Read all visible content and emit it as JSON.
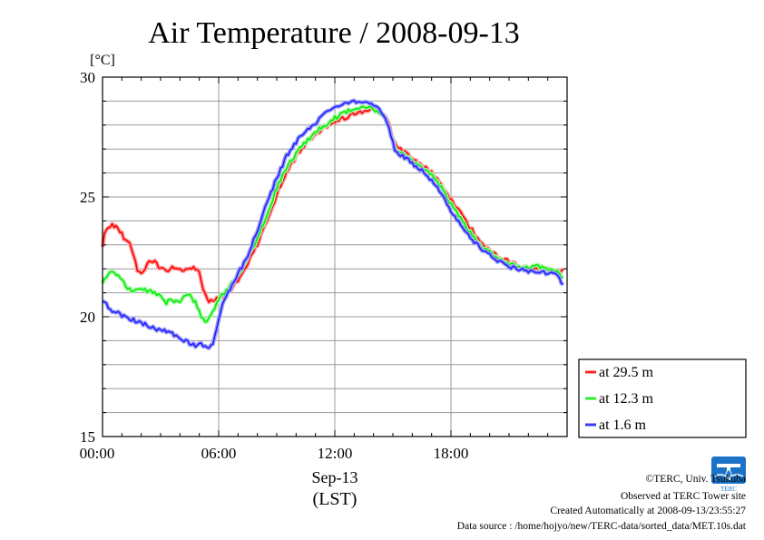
{
  "chart_data": {
    "type": "line",
    "title": "Air Temperature / 2008-09-13",
    "ylabel": "[°C]",
    "xlabel": "Sep-13",
    "xlabel2": "(LST)",
    "ylim": [
      15,
      30
    ],
    "xlim": [
      0,
      24
    ],
    "y_ticks": [
      {
        "v": 15,
        "label": "15"
      },
      {
        "v": 20,
        "label": "20"
      },
      {
        "v": 25,
        "label": "25"
      },
      {
        "v": 30,
        "label": "30"
      }
    ],
    "x_ticks": [
      {
        "v": 0,
        "label": "00:00"
      },
      {
        "v": 6,
        "label": "06:00"
      },
      {
        "v": 12,
        "label": "12:00"
      },
      {
        "v": 18,
        "label": "18:00"
      }
    ],
    "grid": true,
    "legend_position": "right-bottom",
    "series": [
      {
        "name": "at 29.5 m",
        "color": "#ff0000",
        "halo": "#ff9e9e",
        "points": [
          [
            0.0,
            23.0
          ],
          [
            0.15,
            23.7
          ],
          [
            0.5,
            23.8
          ],
          [
            0.8,
            23.7
          ],
          [
            1.1,
            23.3
          ],
          [
            1.4,
            23.1
          ],
          [
            1.6,
            22.6
          ],
          [
            1.8,
            21.9
          ],
          [
            2.1,
            21.8
          ],
          [
            2.4,
            22.4
          ],
          [
            2.7,
            22.3
          ],
          [
            3.0,
            22.0
          ],
          [
            3.3,
            21.9
          ],
          [
            3.6,
            22.1
          ],
          [
            3.9,
            22.0
          ],
          [
            4.2,
            21.9
          ],
          [
            4.5,
            22.1
          ],
          [
            4.8,
            22.0
          ],
          [
            5.0,
            21.8
          ],
          [
            5.2,
            21.2
          ],
          [
            5.5,
            20.6
          ],
          [
            5.8,
            20.7
          ],
          [
            6.1,
            20.8
          ],
          [
            6.5,
            21.0
          ],
          [
            7.0,
            21.5
          ],
          [
            7.5,
            22.2
          ],
          [
            8.0,
            23.0
          ],
          [
            8.5,
            24.0
          ],
          [
            9.0,
            25.1
          ],
          [
            9.5,
            26.0
          ],
          [
            10.0,
            26.7
          ],
          [
            10.5,
            27.2
          ],
          [
            11.0,
            27.6
          ],
          [
            11.5,
            27.9
          ],
          [
            12.0,
            28.1
          ],
          [
            12.5,
            28.3
          ],
          [
            13.0,
            28.5
          ],
          [
            13.5,
            28.6
          ],
          [
            14.0,
            28.7
          ],
          [
            14.5,
            28.5
          ],
          [
            14.8,
            28.0
          ],
          [
            15.1,
            27.2
          ],
          [
            15.5,
            26.9
          ],
          [
            16.0,
            26.6
          ],
          [
            16.5,
            26.3
          ],
          [
            17.0,
            26.0
          ],
          [
            17.5,
            25.5
          ],
          [
            18.0,
            24.9
          ],
          [
            18.5,
            24.3
          ],
          [
            19.0,
            23.7
          ],
          [
            19.5,
            23.2
          ],
          [
            20.0,
            22.8
          ],
          [
            20.5,
            22.5
          ],
          [
            21.0,
            22.3
          ],
          [
            21.5,
            22.1
          ],
          [
            22.0,
            22.0
          ],
          [
            22.5,
            22.0
          ],
          [
            23.0,
            22.0
          ],
          [
            23.3,
            21.9
          ],
          [
            23.6,
            21.8
          ],
          [
            23.85,
            22.0
          ]
        ]
      },
      {
        "name": "at 12.3 m",
        "color": "#00ee00",
        "halo": "#a6f7a6",
        "points": [
          [
            0.0,
            21.4
          ],
          [
            0.3,
            21.8
          ],
          [
            0.6,
            21.9
          ],
          [
            0.9,
            21.6
          ],
          [
            1.2,
            21.3
          ],
          [
            1.5,
            21.1
          ],
          [
            1.8,
            21.2
          ],
          [
            2.1,
            21.1
          ],
          [
            2.4,
            21.1
          ],
          [
            2.7,
            21.0
          ],
          [
            3.0,
            20.8
          ],
          [
            3.3,
            20.6
          ],
          [
            3.6,
            20.7
          ],
          [
            3.9,
            20.6
          ],
          [
            4.2,
            20.8
          ],
          [
            4.5,
            20.9
          ],
          [
            4.8,
            20.6
          ],
          [
            5.1,
            20.0
          ],
          [
            5.4,
            19.8
          ],
          [
            5.7,
            20.2
          ],
          [
            6.0,
            20.7
          ],
          [
            6.5,
            21.2
          ],
          [
            7.0,
            21.7
          ],
          [
            7.5,
            22.4
          ],
          [
            8.0,
            23.3
          ],
          [
            8.5,
            24.2
          ],
          [
            9.0,
            25.4
          ],
          [
            9.5,
            26.2
          ],
          [
            10.0,
            26.8
          ],
          [
            10.5,
            27.3
          ],
          [
            11.0,
            27.7
          ],
          [
            11.5,
            28.0
          ],
          [
            12.0,
            28.3
          ],
          [
            12.5,
            28.5
          ],
          [
            13.0,
            28.7
          ],
          [
            13.5,
            28.75
          ],
          [
            14.0,
            28.7
          ],
          [
            14.5,
            28.4
          ],
          [
            14.8,
            27.9
          ],
          [
            15.1,
            27.1
          ],
          [
            15.5,
            26.8
          ],
          [
            16.0,
            26.5
          ],
          [
            16.5,
            26.2
          ],
          [
            17.0,
            25.9
          ],
          [
            17.5,
            25.4
          ],
          [
            18.0,
            24.7
          ],
          [
            18.5,
            24.1
          ],
          [
            19.0,
            23.5
          ],
          [
            19.5,
            23.0
          ],
          [
            20.0,
            22.7
          ],
          [
            20.5,
            22.4
          ],
          [
            21.0,
            22.2
          ],
          [
            21.5,
            22.1
          ],
          [
            22.0,
            22.0
          ],
          [
            22.5,
            22.1
          ],
          [
            23.0,
            22.0
          ],
          [
            23.3,
            21.9
          ],
          [
            23.6,
            21.8
          ],
          [
            23.85,
            21.6
          ]
        ]
      },
      {
        "name": "at 1.6 m",
        "color": "#2020ff",
        "halo": "#9e9ef7",
        "points": [
          [
            0.0,
            20.7
          ],
          [
            0.3,
            20.4
          ],
          [
            0.6,
            20.2
          ],
          [
            0.9,
            20.1
          ],
          [
            1.2,
            20.0
          ],
          [
            1.5,
            19.9
          ],
          [
            1.8,
            19.8
          ],
          [
            2.1,
            19.7
          ],
          [
            2.4,
            19.6
          ],
          [
            2.7,
            19.5
          ],
          [
            3.0,
            19.4
          ],
          [
            3.3,
            19.4
          ],
          [
            3.6,
            19.3
          ],
          [
            3.9,
            19.2
          ],
          [
            4.2,
            19.0
          ],
          [
            4.5,
            18.9
          ],
          [
            4.8,
            18.8
          ],
          [
            5.1,
            18.9
          ],
          [
            5.4,
            18.7
          ],
          [
            5.7,
            18.9
          ],
          [
            6.0,
            19.8
          ],
          [
            6.3,
            20.8
          ],
          [
            6.6,
            21.2
          ],
          [
            7.0,
            21.8
          ],
          [
            7.5,
            22.5
          ],
          [
            8.0,
            23.6
          ],
          [
            8.5,
            24.8
          ],
          [
            9.0,
            25.8
          ],
          [
            9.5,
            26.7
          ],
          [
            10.0,
            27.3
          ],
          [
            10.5,
            27.8
          ],
          [
            11.0,
            28.1
          ],
          [
            11.5,
            28.5
          ],
          [
            12.0,
            28.7
          ],
          [
            12.5,
            28.9
          ],
          [
            13.0,
            29.0
          ],
          [
            13.5,
            28.95
          ],
          [
            14.0,
            28.8
          ],
          [
            14.5,
            28.5
          ],
          [
            14.8,
            27.9
          ],
          [
            15.1,
            27.0
          ],
          [
            15.5,
            26.7
          ],
          [
            16.0,
            26.4
          ],
          [
            16.5,
            26.1
          ],
          [
            17.0,
            25.7
          ],
          [
            17.5,
            25.1
          ],
          [
            18.0,
            24.4
          ],
          [
            18.5,
            23.8
          ],
          [
            19.0,
            23.3
          ],
          [
            19.5,
            22.9
          ],
          [
            20.0,
            22.6
          ],
          [
            20.5,
            22.3
          ],
          [
            21.0,
            22.1
          ],
          [
            21.5,
            22.0
          ],
          [
            22.0,
            21.9
          ],
          [
            22.5,
            21.9
          ],
          [
            23.0,
            21.8
          ],
          [
            23.3,
            21.8
          ],
          [
            23.6,
            21.6
          ],
          [
            23.85,
            21.3
          ]
        ]
      }
    ]
  },
  "footer": {
    "copyright": "©TERC, Univ. Tsukuba",
    "observed": "Observed at TERC Tower site",
    "created": "Created Automatically at 2008-09-13/23:55:27",
    "source": "Data source : /home/hojyo/new/TERC-data/sorted_data/MET.10s.dat"
  },
  "logo": {
    "text": "TERC",
    "icon": "terc-logo-icon",
    "color": "#1a73c8"
  }
}
